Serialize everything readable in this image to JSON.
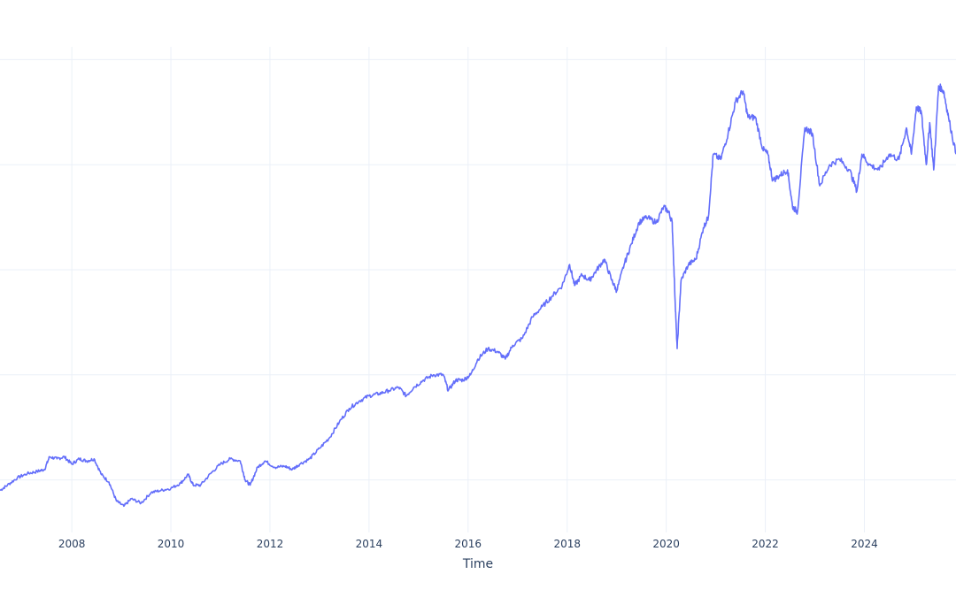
{
  "chart_data": {
    "type": "line",
    "title": "",
    "xlabel": "Time",
    "ylabel": "",
    "xlim": [
      2006.55,
      2025.85
    ],
    "ylim": [
      0,
      5
    ],
    "grid": true,
    "x_ticks": [
      2008,
      2010,
      2012,
      2014,
      2016,
      2018,
      2020,
      2022,
      2024
    ],
    "x_tick_labels": [
      "2008",
      "2010",
      "2012",
      "2014",
      "2016",
      "2018",
      "2020",
      "2022",
      "2024"
    ],
    "y_gridlines": [
      0.5,
      1.5,
      2.5,
      3.5,
      4.5
    ],
    "series": [
      {
        "color": "#636efa",
        "x": [
          2006.55,
          2006.7,
          2006.9,
          2007.1,
          2007.3,
          2007.45,
          2007.55,
          2007.7,
          2007.85,
          2008.0,
          2008.15,
          2008.3,
          2008.45,
          2008.6,
          2008.75,
          2008.9,
          2009.05,
          2009.2,
          2009.4,
          2009.6,
          2009.8,
          2010.0,
          2010.2,
          2010.35,
          2010.45,
          2010.6,
          2010.8,
          2011.0,
          2011.2,
          2011.4,
          2011.5,
          2011.6,
          2011.75,
          2011.9,
          2012.1,
          2012.3,
          2012.45,
          2012.6,
          2012.8,
          2013.0,
          2013.2,
          2013.4,
          2013.6,
          2013.8,
          2014.0,
          2014.2,
          2014.4,
          2014.6,
          2014.75,
          2014.9,
          2015.1,
          2015.3,
          2015.5,
          2015.6,
          2015.75,
          2015.9,
          2016.05,
          2016.2,
          2016.4,
          2016.6,
          2016.75,
          2016.9,
          2017.1,
          2017.3,
          2017.5,
          2017.7,
          2017.9,
          2018.05,
          2018.15,
          2018.3,
          2018.45,
          2018.6,
          2018.75,
          2018.9,
          2019.0,
          2019.15,
          2019.3,
          2019.45,
          2019.6,
          2019.8,
          2019.95,
          2020.05,
          2020.12,
          2020.18,
          2020.22,
          2020.3,
          2020.45,
          2020.6,
          2020.75,
          2020.85,
          2020.95,
          2021.1,
          2021.25,
          2021.4,
          2021.55,
          2021.65,
          2021.8,
          2021.95,
          2022.05,
          2022.15,
          2022.3,
          2022.45,
          2022.55,
          2022.65,
          2022.8,
          2022.95,
          2023.1,
          2023.3,
          2023.5,
          2023.7,
          2023.85,
          2023.95,
          2024.1,
          2024.3,
          2024.5,
          2024.7,
          2024.85,
          2024.95,
          2025.05,
          2025.15,
          2025.25,
          2025.32,
          2025.4,
          2025.5,
          2025.6,
          2025.7,
          2025.85
        ],
        "y": [
          0.4,
          0.45,
          0.52,
          0.56,
          0.58,
          0.6,
          0.72,
          0.7,
          0.72,
          0.65,
          0.7,
          0.68,
          0.7,
          0.55,
          0.48,
          0.3,
          0.25,
          0.32,
          0.28,
          0.38,
          0.4,
          0.42,
          0.47,
          0.55,
          0.45,
          0.45,
          0.56,
          0.65,
          0.7,
          0.68,
          0.5,
          0.45,
          0.62,
          0.68,
          0.62,
          0.63,
          0.6,
          0.65,
          0.7,
          0.8,
          0.9,
          1.05,
          1.18,
          1.25,
          1.3,
          1.32,
          1.35,
          1.38,
          1.3,
          1.38,
          1.45,
          1.5,
          1.5,
          1.35,
          1.45,
          1.45,
          1.5,
          1.65,
          1.75,
          1.72,
          1.65,
          1.78,
          1.85,
          2.05,
          2.15,
          2.25,
          2.35,
          2.55,
          2.35,
          2.45,
          2.4,
          2.5,
          2.6,
          2.4,
          2.3,
          2.55,
          2.75,
          2.95,
          3.0,
          2.95,
          3.1,
          3.05,
          2.95,
          2.2,
          1.75,
          2.4,
          2.55,
          2.6,
          2.9,
          3.0,
          3.6,
          3.55,
          3.8,
          4.1,
          4.2,
          3.95,
          3.95,
          3.65,
          3.6,
          3.35,
          3.4,
          3.45,
          3.1,
          3.05,
          3.85,
          3.8,
          3.3,
          3.5,
          3.55,
          3.45,
          3.25,
          3.6,
          3.5,
          3.45,
          3.6,
          3.55,
          3.85,
          3.6,
          4.05,
          4.0,
          3.5,
          3.9,
          3.45,
          4.25,
          4.2,
          3.95,
          3.6
        ]
      }
    ]
  }
}
